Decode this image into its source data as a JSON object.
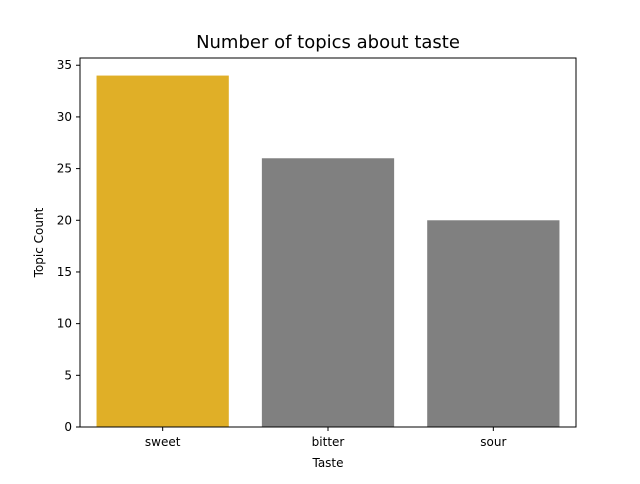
{
  "chart_data": {
    "type": "bar",
    "title": "Number of topics about taste",
    "xlabel": "Taste",
    "ylabel": "Topic Count",
    "categories": [
      "sweet",
      "bitter",
      "sour"
    ],
    "values": [
      34,
      26,
      20
    ],
    "colors": [
      "#e0af27",
      "#808080",
      "#808080"
    ],
    "ylim": [
      0,
      35.7
    ],
    "yticks": [
      0,
      5,
      10,
      15,
      20,
      25,
      30,
      35
    ],
    "grid": false,
    "legend": "none"
  }
}
